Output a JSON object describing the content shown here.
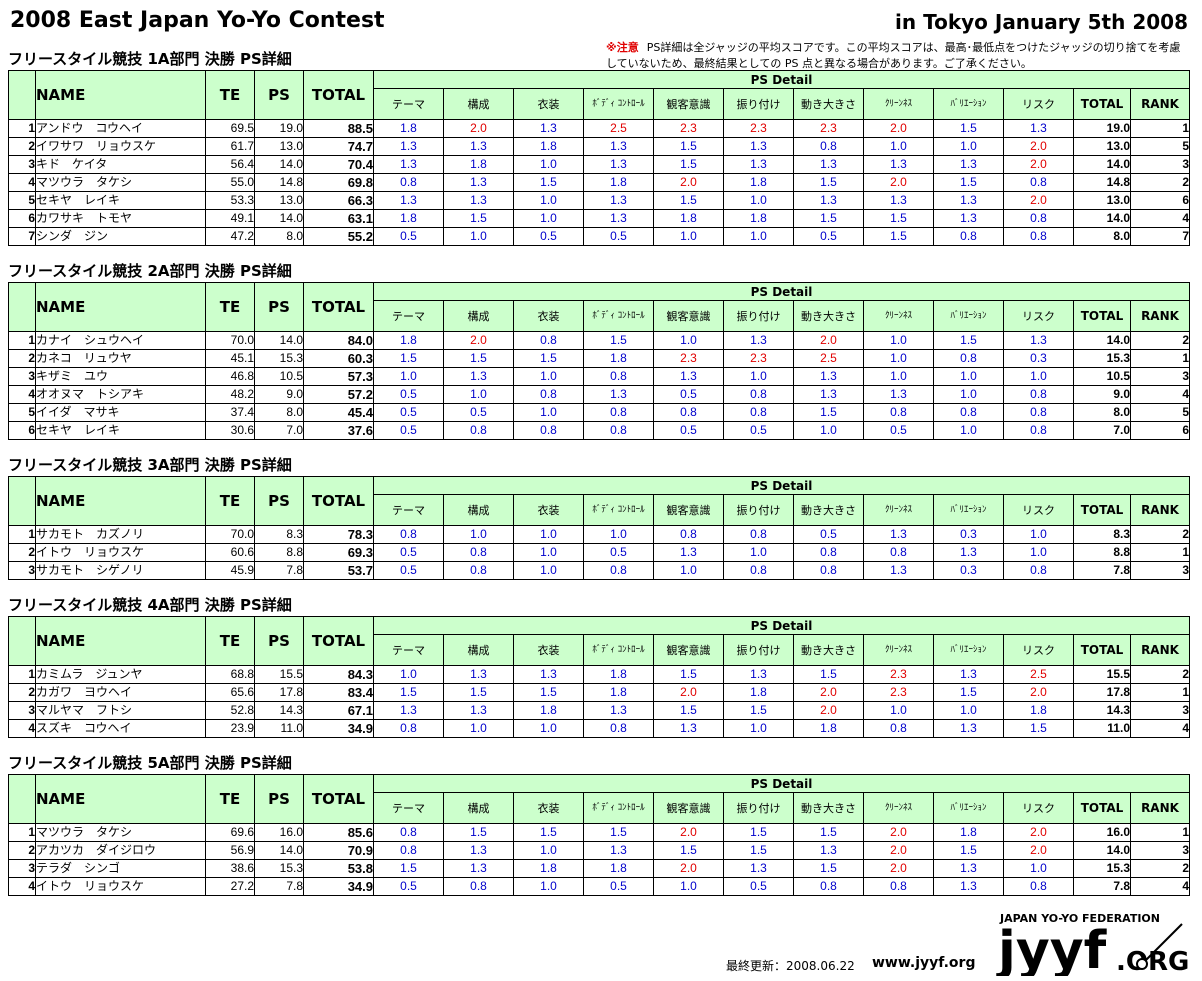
{
  "header": {
    "title": "2008 East Japan Yo-Yo Contest",
    "location": "in Tokyo January 5th 2008",
    "note_label": "※注意",
    "note_text": "PS詳細は全ジャッジの平均スコアです。この平均スコアは、最高･最低点をつけたジャッジの切り捨てを考慮していないため、最終結果としての PS 点と異なる場合があります。ご了承ください。"
  },
  "columns": {
    "name": "NAME",
    "te": "TE",
    "ps": "PS",
    "total": "TOTAL",
    "ps_detail": "PS Detail",
    "criteria": [
      "テーマ",
      "構成",
      "衣装",
      "ﾎﾞﾃﾞｨ ｺﾝﾄﾛｰﾙ",
      "観客意識",
      "振り付け",
      "動き大きさ",
      "ｸﾘｰﾝﾈｽ",
      "ﾊﾞﾘｴｰｼｮﾝ",
      "リスク"
    ],
    "detail_total": "TOTAL",
    "rank": "RANK"
  },
  "highlight_color": "#e00000",
  "score_color": "#0000cc",
  "header_bg": "#ccffcc",
  "sections": [
    {
      "title": "フリースタイル競技 1A部門 決勝 PS詳細",
      "rows": [
        {
          "no": "1",
          "name": "アンドウ　コウヘイ",
          "te": "69.5",
          "ps": "19.0",
          "total": "88.5",
          "scores": [
            "1.8",
            "2.0",
            "1.3",
            "2.5",
            "2.3",
            "2.3",
            "2.3",
            "2.0",
            "1.5",
            "1.3"
          ],
          "ps_total": "19.0",
          "rank": "1"
        },
        {
          "no": "2",
          "name": "イワサワ　リョウスケ",
          "te": "61.7",
          "ps": "13.0",
          "total": "74.7",
          "scores": [
            "1.3",
            "1.3",
            "1.8",
            "1.3",
            "1.5",
            "1.3",
            "0.8",
            "1.0",
            "1.0",
            "2.0"
          ],
          "ps_total": "13.0",
          "rank": "5"
        },
        {
          "no": "3",
          "name": "キド　ケイタ",
          "te": "56.4",
          "ps": "14.0",
          "total": "70.4",
          "scores": [
            "1.3",
            "1.8",
            "1.0",
            "1.3",
            "1.5",
            "1.3",
            "1.3",
            "1.3",
            "1.3",
            "2.0"
          ],
          "ps_total": "14.0",
          "rank": "3"
        },
        {
          "no": "4",
          "name": "マツウラ　タケシ",
          "te": "55.0",
          "ps": "14.8",
          "total": "69.8",
          "scores": [
            "0.8",
            "1.3",
            "1.5",
            "1.8",
            "2.0",
            "1.8",
            "1.5",
            "2.0",
            "1.5",
            "0.8"
          ],
          "ps_total": "14.8",
          "rank": "2"
        },
        {
          "no": "5",
          "name": "セキヤ　レイキ",
          "te": "53.3",
          "ps": "13.0",
          "total": "66.3",
          "scores": [
            "1.3",
            "1.3",
            "1.0",
            "1.3",
            "1.5",
            "1.0",
            "1.3",
            "1.3",
            "1.3",
            "2.0"
          ],
          "ps_total": "13.0",
          "rank": "6"
        },
        {
          "no": "6",
          "name": "カワサキ　トモヤ",
          "te": "49.1",
          "ps": "14.0",
          "total": "63.1",
          "scores": [
            "1.8",
            "1.5",
            "1.0",
            "1.3",
            "1.8",
            "1.8",
            "1.5",
            "1.5",
            "1.3",
            "0.8"
          ],
          "ps_total": "14.0",
          "rank": "4"
        },
        {
          "no": "7",
          "name": "シンダ　ジン",
          "te": "47.2",
          "ps": "8.0",
          "total": "55.2",
          "scores": [
            "0.5",
            "1.0",
            "0.5",
            "0.5",
            "1.0",
            "1.0",
            "0.5",
            "1.5",
            "0.8",
            "0.8"
          ],
          "ps_total": "8.0",
          "rank": "7"
        }
      ]
    },
    {
      "title": "フリースタイル競技 2A部門 決勝 PS詳細",
      "rows": [
        {
          "no": "1",
          "name": "カナイ　シュウヘイ",
          "te": "70.0",
          "ps": "14.0",
          "total": "84.0",
          "scores": [
            "1.8",
            "2.0",
            "0.8",
            "1.5",
            "1.0",
            "1.3",
            "2.0",
            "1.0",
            "1.5",
            "1.3"
          ],
          "ps_total": "14.0",
          "rank": "2"
        },
        {
          "no": "2",
          "name": "カネコ　リュウヤ",
          "te": "45.1",
          "ps": "15.3",
          "total": "60.3",
          "scores": [
            "1.5",
            "1.5",
            "1.5",
            "1.8",
            "2.3",
            "2.3",
            "2.5",
            "1.0",
            "0.8",
            "0.3"
          ],
          "ps_total": "15.3",
          "rank": "1"
        },
        {
          "no": "3",
          "name": "キザミ　ユウ",
          "te": "46.8",
          "ps": "10.5",
          "total": "57.3",
          "scores": [
            "1.0",
            "1.3",
            "1.0",
            "0.8",
            "1.3",
            "1.0",
            "1.3",
            "1.0",
            "1.0",
            "1.0"
          ],
          "ps_total": "10.5",
          "rank": "3"
        },
        {
          "no": "4",
          "name": "オオヌマ　トシアキ",
          "te": "48.2",
          "ps": "9.0",
          "total": "57.2",
          "scores": [
            "0.5",
            "1.0",
            "0.8",
            "1.3",
            "0.5",
            "0.8",
            "1.3",
            "1.3",
            "1.0",
            "0.8"
          ],
          "ps_total": "9.0",
          "rank": "4"
        },
        {
          "no": "5",
          "name": "イイダ　マサキ",
          "te": "37.4",
          "ps": "8.0",
          "total": "45.4",
          "scores": [
            "0.5",
            "0.5",
            "1.0",
            "0.8",
            "0.8",
            "0.8",
            "1.5",
            "0.8",
            "0.8",
            "0.8"
          ],
          "ps_total": "8.0",
          "rank": "5"
        },
        {
          "no": "6",
          "name": "セキヤ　レイキ",
          "te": "30.6",
          "ps": "7.0",
          "total": "37.6",
          "scores": [
            "0.5",
            "0.8",
            "0.8",
            "0.8",
            "0.5",
            "0.5",
            "1.0",
            "0.5",
            "1.0",
            "0.8"
          ],
          "ps_total": "7.0",
          "rank": "6"
        }
      ]
    },
    {
      "title": "フリースタイル競技 3A部門 決勝 PS詳細",
      "rows": [
        {
          "no": "1",
          "name": "サカモト　カズノリ",
          "te": "70.0",
          "ps": "8.3",
          "total": "78.3",
          "scores": [
            "0.8",
            "1.0",
            "1.0",
            "1.0",
            "0.8",
            "0.8",
            "0.5",
            "1.3",
            "0.3",
            "1.0"
          ],
          "ps_total": "8.3",
          "rank": "2"
        },
        {
          "no": "2",
          "name": "イトウ　リョウスケ",
          "te": "60.6",
          "ps": "8.8",
          "total": "69.3",
          "scores": [
            "0.5",
            "0.8",
            "1.0",
            "0.5",
            "1.3",
            "1.0",
            "0.8",
            "0.8",
            "1.3",
            "1.0"
          ],
          "ps_total": "8.8",
          "rank": "1"
        },
        {
          "no": "3",
          "name": "サカモト　シゲノリ",
          "te": "45.9",
          "ps": "7.8",
          "total": "53.7",
          "scores": [
            "0.5",
            "0.8",
            "1.0",
            "0.8",
            "1.0",
            "0.8",
            "0.8",
            "1.3",
            "0.3",
            "0.8"
          ],
          "ps_total": "7.8",
          "rank": "3"
        }
      ]
    },
    {
      "title": "フリースタイル競技 4A部門 決勝 PS詳細",
      "rows": [
        {
          "no": "1",
          "name": "カミムラ　ジュンヤ",
          "te": "68.8",
          "ps": "15.5",
          "total": "84.3",
          "scores": [
            "1.0",
            "1.3",
            "1.3",
            "1.8",
            "1.5",
            "1.3",
            "1.5",
            "2.3",
            "1.3",
            "2.5"
          ],
          "ps_total": "15.5",
          "rank": "2"
        },
        {
          "no": "2",
          "name": "カガワ　ヨウヘイ",
          "te": "65.6",
          "ps": "17.8",
          "total": "83.4",
          "scores": [
            "1.5",
            "1.5",
            "1.5",
            "1.8",
            "2.0",
            "1.8",
            "2.0",
            "2.3",
            "1.5",
            "2.0"
          ],
          "ps_total": "17.8",
          "rank": "1"
        },
        {
          "no": "3",
          "name": "マルヤマ　フトシ",
          "te": "52.8",
          "ps": "14.3",
          "total": "67.1",
          "scores": [
            "1.3",
            "1.3",
            "1.8",
            "1.3",
            "1.5",
            "1.5",
            "2.0",
            "1.0",
            "1.0",
            "1.8"
          ],
          "ps_total": "14.3",
          "rank": "3"
        },
        {
          "no": "4",
          "name": "スズキ　コウヘイ",
          "te": "23.9",
          "ps": "11.0",
          "total": "34.9",
          "scores": [
            "0.8",
            "1.0",
            "1.0",
            "0.8",
            "1.3",
            "1.0",
            "1.8",
            "0.8",
            "1.3",
            "1.5"
          ],
          "ps_total": "11.0",
          "rank": "4"
        }
      ]
    },
    {
      "title": "フリースタイル競技 5A部門 決勝 PS詳細",
      "rows": [
        {
          "no": "1",
          "name": "マツウラ　タケシ",
          "te": "69.6",
          "ps": "16.0",
          "total": "85.6",
          "scores": [
            "0.8",
            "1.5",
            "1.5",
            "1.5",
            "2.0",
            "1.5",
            "1.5",
            "2.0",
            "1.8",
            "2.0"
          ],
          "ps_total": "16.0",
          "rank": "1"
        },
        {
          "no": "2",
          "name": "アカツカ　ダイジロウ",
          "te": "56.9",
          "ps": "14.0",
          "total": "70.9",
          "scores": [
            "0.8",
            "1.3",
            "1.0",
            "1.3",
            "1.5",
            "1.5",
            "1.3",
            "2.0",
            "1.5",
            "2.0"
          ],
          "ps_total": "14.0",
          "rank": "3"
        },
        {
          "no": "3",
          "name": "テラダ　シンゴ",
          "te": "38.6",
          "ps": "15.3",
          "total": "53.8",
          "scores": [
            "1.5",
            "1.3",
            "1.8",
            "1.8",
            "2.0",
            "1.3",
            "1.5",
            "2.0",
            "1.3",
            "1.0"
          ],
          "ps_total": "15.3",
          "rank": "2"
        },
        {
          "no": "4",
          "name": "イトウ　リョウスケ",
          "te": "27.2",
          "ps": "7.8",
          "total": "34.9",
          "scores": [
            "0.5",
            "0.8",
            "1.0",
            "0.5",
            "1.0",
            "0.5",
            "0.8",
            "0.8",
            "1.3",
            "0.8"
          ],
          "ps_total": "7.8",
          "rank": "4"
        }
      ]
    }
  ],
  "footer": {
    "updated": "最終更新：2008.06.22",
    "site": "www.jyyf.org",
    "logo_top": "JAPAN YO-YO FEDERATION",
    "logo_main": "jyyf",
    "logo_suffix": ".ORG"
  }
}
